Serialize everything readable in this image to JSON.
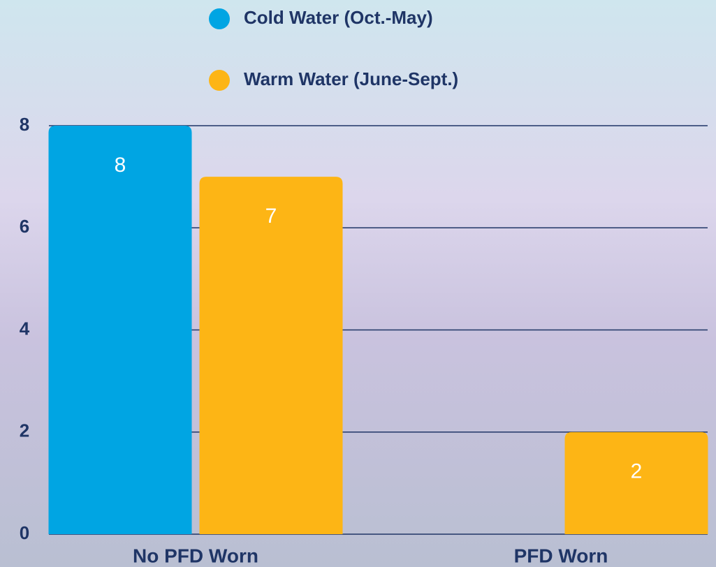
{
  "chart_data": {
    "type": "bar",
    "categories": [
      "No PFD Worn",
      "PFD Worn"
    ],
    "series": [
      {
        "name": "Cold Water (Oct.-May)",
        "color": "#00a5e3",
        "values": [
          8,
          0
        ]
      },
      {
        "name": "Warm Water (June-Sept.)",
        "color": "#fdb515",
        "values": [
          7,
          2
        ]
      }
    ],
    "ylim": [
      0,
      8
    ],
    "yticks": [
      0,
      2,
      4,
      6,
      8
    ],
    "grid": true
  }
}
